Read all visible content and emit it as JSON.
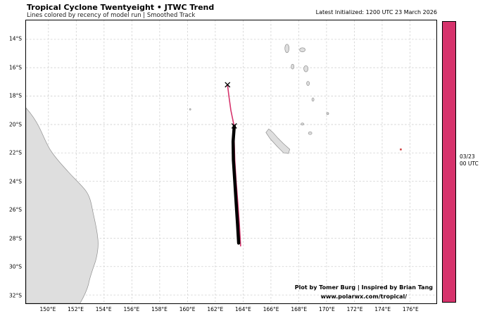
{
  "header": {
    "title": "Tropical Cyclone Twentyeight • JTWC Trend",
    "subtitle": "Lines colored by recency of model run | Smoothed Track",
    "initialized": "Latest Initialized: 1200 UTC 23 March 2026"
  },
  "credits": {
    "line1": "Plot by Tomer Burg | Inspired by Brian Tang",
    "line2": "www.polarwx.com/tropical/"
  },
  "colorbar": {
    "color": "#d6336c",
    "label_line1": "03/23",
    "label_line2": "00 UTC"
  },
  "chart_data": {
    "type": "line",
    "title": "Tropical Cyclone Twentyeight • JTWC Trend",
    "subtitle": "Lines colored by recency of model run | Smoothed Track",
    "x_ticks": [
      "150°E",
      "152°E",
      "154°E",
      "156°E",
      "158°E",
      "160°E",
      "162°E",
      "164°E",
      "166°E",
      "168°E",
      "170°E",
      "172°E",
      "174°E",
      "176°E"
    ],
    "y_ticks": [
      "14°S",
      "16°S",
      "18°S",
      "20°S",
      "22°S",
      "24°S",
      "26°S",
      "28°S",
      "30°S",
      "32°S"
    ],
    "lon_range": [
      148.39,
      177.9
    ],
    "lat_range": [
      12.67,
      32.59
    ],
    "grid": "dashed",
    "grid_color": "#cfcfcf",
    "land_color": "#dedede",
    "series": [
      {
        "name": "model-trend-line",
        "color": "#d6336c",
        "width": 1.6,
        "points_lon_lat": [
          [
            162.88,
            17.2
          ],
          [
            162.98,
            18.0
          ],
          [
            163.12,
            19.0
          ],
          [
            163.35,
            20.1
          ],
          [
            163.36,
            21.2
          ],
          [
            163.4,
            22.5
          ],
          [
            163.5,
            24.0
          ],
          [
            163.62,
            25.5
          ],
          [
            163.73,
            27.0
          ],
          [
            163.8,
            28.2
          ],
          [
            163.82,
            28.55
          ]
        ]
      },
      {
        "name": "jtwc-smoothed-track",
        "color": "#000000",
        "width": 4.5,
        "points_lon_lat": [
          [
            163.36,
            20.12
          ],
          [
            163.28,
            21.2
          ],
          [
            163.3,
            22.5
          ],
          [
            163.4,
            24.0
          ],
          [
            163.5,
            25.5
          ],
          [
            163.6,
            27.0
          ],
          [
            163.66,
            28.0
          ],
          [
            163.68,
            28.35
          ]
        ]
      }
    ],
    "markers": [
      {
        "lon": 162.88,
        "lat": 17.2,
        "symbol": "x"
      },
      {
        "lon": 163.36,
        "lat": 20.1,
        "symbol": "x"
      }
    ]
  }
}
